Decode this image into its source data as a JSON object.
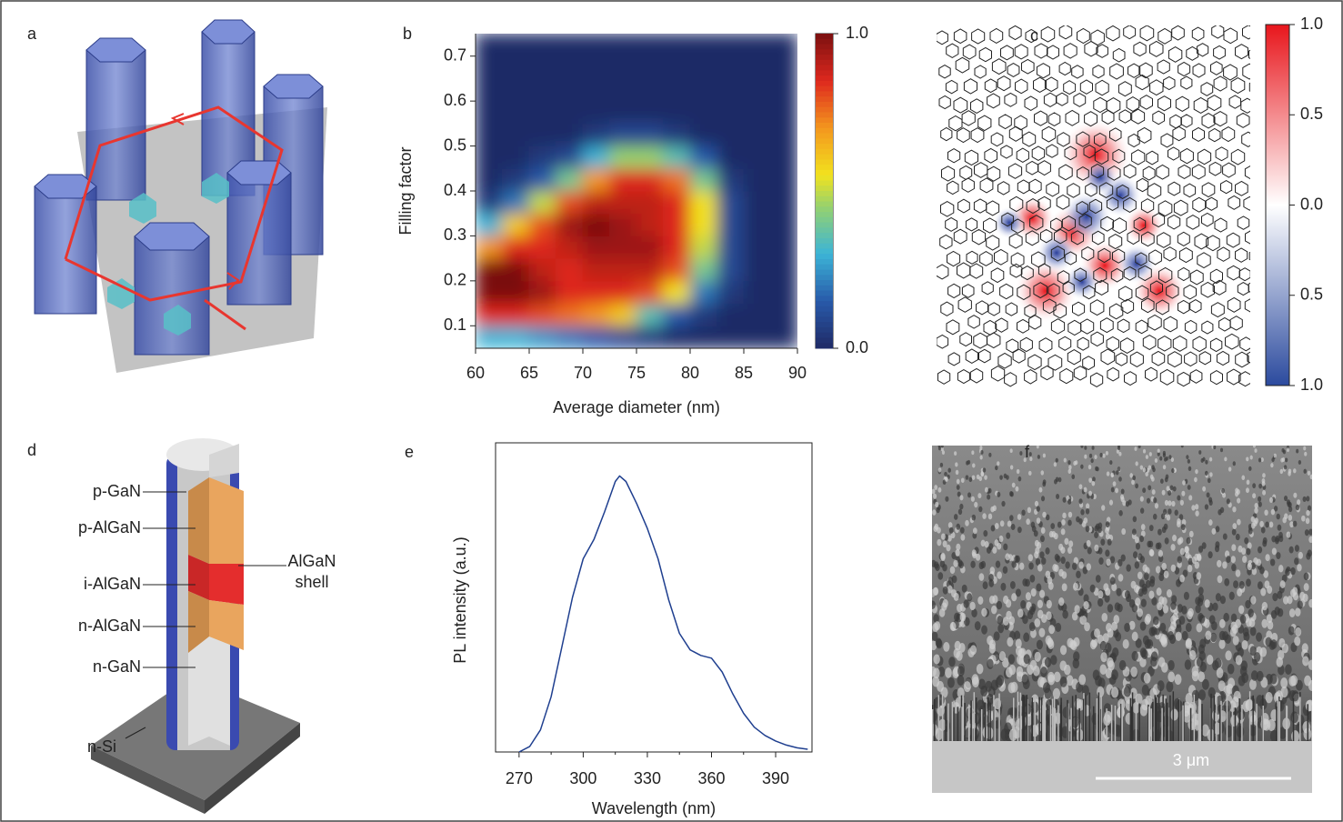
{
  "panel_labels": [
    "a",
    "b",
    "c",
    "d",
    "e",
    "f"
  ],
  "chart_data": [
    {
      "type": "heatmap",
      "xlabel": "Average diameter (nm)",
      "ylabel": "Filling factor",
      "xlim": [
        60,
        90
      ],
      "xticks": [
        60,
        65,
        70,
        75,
        80,
        85,
        90
      ],
      "ylim": [
        0.05,
        0.75
      ],
      "yticks": [
        0.1,
        0.2,
        0.3,
        0.4,
        0.5,
        0.6,
        0.7
      ],
      "x": [
        61.25,
        63.75,
        66.25,
        68.75,
        71.25,
        73.75,
        76.25,
        78.75,
        81.25,
        83.75,
        86.25,
        88.75
      ],
      "y": [
        0.075,
        0.125,
        0.175,
        0.225,
        0.275,
        0.325,
        0.375,
        0.425,
        0.475,
        0.525,
        0.575,
        0.625,
        0.675,
        0.725
      ],
      "z": [
        [
          0.3,
          0.3,
          0.25,
          0.2,
          0.15,
          0.1,
          0.05,
          0,
          0,
          0,
          0,
          0
        ],
        [
          0.85,
          0.85,
          0.8,
          0.75,
          0.7,
          0.6,
          0.35,
          0.15,
          0.05,
          0,
          0,
          0
        ],
        [
          1.0,
          1.0,
          0.95,
          0.85,
          0.85,
          0.85,
          0.8,
          0.55,
          0.2,
          0.05,
          0,
          0
        ],
        [
          1.0,
          1.0,
          0.9,
          0.85,
          0.9,
          0.9,
          0.9,
          0.8,
          0.4,
          0.1,
          0,
          0
        ],
        [
          0.7,
          0.85,
          0.85,
          0.9,
          0.95,
          0.95,
          0.95,
          0.85,
          0.5,
          0.1,
          0,
          0
        ],
        [
          0.3,
          0.6,
          0.8,
          0.95,
          1.0,
          0.95,
          0.9,
          0.85,
          0.55,
          0.1,
          0,
          0
        ],
        [
          0.05,
          0.2,
          0.5,
          0.8,
          0.9,
          0.9,
          0.9,
          0.85,
          0.55,
          0.1,
          0,
          0
        ],
        [
          0,
          0.05,
          0.15,
          0.4,
          0.7,
          0.85,
          0.85,
          0.75,
          0.4,
          0.05,
          0,
          0
        ],
        [
          0,
          0,
          0.05,
          0.1,
          0.3,
          0.45,
          0.45,
          0.35,
          0.15,
          0,
          0,
          0
        ],
        [
          0,
          0,
          0,
          0,
          0.05,
          0.1,
          0.1,
          0.05,
          0,
          0,
          0,
          0
        ],
        [
          0,
          0,
          0,
          0,
          0,
          0,
          0,
          0,
          0,
          0,
          0,
          0
        ],
        [
          0,
          0,
          0,
          0,
          0,
          0,
          0,
          0,
          0,
          0,
          0,
          0
        ],
        [
          0,
          0,
          0,
          0,
          0,
          0,
          0,
          0,
          0,
          0,
          0,
          0
        ],
        [
          0,
          0,
          0,
          0,
          0,
          0,
          0,
          0,
          0,
          0,
          0,
          0
        ]
      ],
      "clim": [
        0,
        1
      ],
      "cticks": [
        {
          "value": 1,
          "label": "1.0"
        },
        {
          "value": 0,
          "label": "0.0"
        }
      ]
    },
    {
      "type": "field-map",
      "clim": [
        -1,
        1
      ],
      "cticks": [
        {
          "value": 1,
          "label": "1.0"
        },
        {
          "value": 0.5,
          "label": "0.5"
        },
        {
          "value": 0,
          "label": "0.0"
        },
        {
          "value": -0.5,
          "label": "0.5"
        },
        {
          "value": -1,
          "label": "1.0"
        }
      ]
    },
    {
      "type": "line",
      "xlabel": "Wavelength (nm)",
      "ylabel": "PL intensity (a.u.)",
      "color": "#1f3f8f",
      "xlim": [
        259,
        407
      ],
      "xticks": [
        270,
        300,
        330,
        360,
        390
      ],
      "ylim": [
        0,
        1.12
      ],
      "x": [
        270,
        275,
        280,
        285,
        290,
        295,
        300,
        305,
        310,
        315,
        317,
        320,
        325,
        330,
        335,
        340,
        345,
        350,
        355,
        360,
        365,
        370,
        375,
        380,
        385,
        390,
        395,
        400,
        405
      ],
      "values": [
        0,
        0.02,
        0.08,
        0.2,
        0.38,
        0.56,
        0.7,
        0.77,
        0.87,
        0.98,
        1.0,
        0.98,
        0.9,
        0.81,
        0.7,
        0.55,
        0.43,
        0.37,
        0.35,
        0.34,
        0.29,
        0.21,
        0.14,
        0.09,
        0.06,
        0.04,
        0.025,
        0.015,
        0.01
      ]
    }
  ],
  "diagram_d": {
    "labels": [
      "p-GaN",
      "p-AlGaN",
      "i-AlGaN",
      "n-AlGaN",
      "n-GaN"
    ],
    "shell_label": [
      "AlGaN",
      "shell"
    ],
    "substrate_label": "n-Si"
  },
  "micrograph_f": {
    "scale_bar": "3 μm"
  }
}
